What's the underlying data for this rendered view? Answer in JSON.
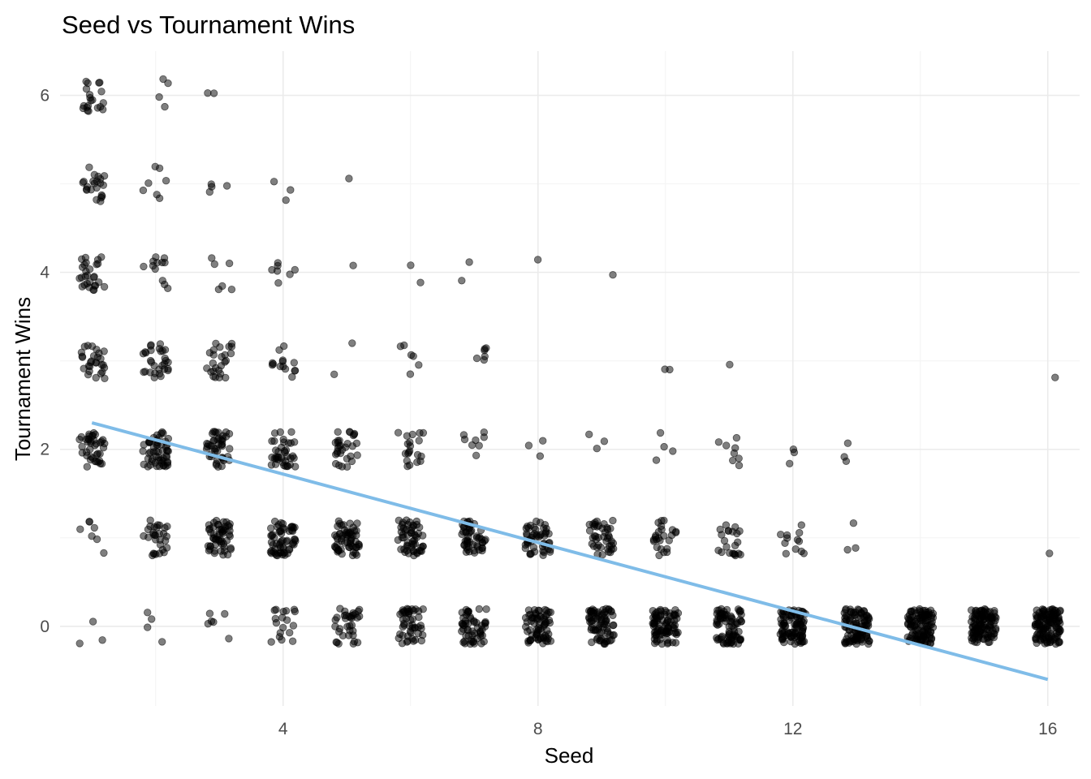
{
  "chart_data": {
    "type": "scatter",
    "title": "Seed vs Tournament Wins",
    "xlabel": "Seed",
    "ylabel": "Tournament Wins",
    "xlim": [
      0.5,
      16.5
    ],
    "ylim": [
      -0.9,
      6.5
    ],
    "x_ticks": [
      4,
      8,
      12,
      16
    ],
    "x_tick_labels": [
      "4",
      "8",
      "12",
      "16"
    ],
    "x_minor_gridlines": [
      2,
      6,
      10,
      14
    ],
    "y_ticks": [
      0,
      2,
      4,
      6
    ],
    "y_tick_labels": [
      "0",
      "2",
      "4",
      "6"
    ],
    "y_minor_gridlines": [
      1,
      3,
      5
    ],
    "grid": true,
    "legend": "none",
    "jitter": {
      "x": 0.2,
      "y": 0.2
    },
    "point_color": "#000000",
    "point_alpha": 0.5,
    "counts_by_seed": [
      {
        "seed": 1,
        "counts": [
          3,
          7,
          40,
          28,
          28,
          22,
          20
        ]
      },
      {
        "seed": 2,
        "counts": [
          4,
          30,
          55,
          30,
          12,
          7,
          4
        ]
      },
      {
        "seed": 3,
        "counts": [
          6,
          55,
          45,
          25,
          6,
          4,
          2
        ]
      },
      {
        "seed": 4,
        "counts": [
          18,
          60,
          38,
          14,
          7,
          3,
          0
        ]
      },
      {
        "seed": 5,
        "counts": [
          35,
          60,
          30,
          2,
          1,
          1,
          0
        ]
      },
      {
        "seed": 6,
        "counts": [
          48,
          55,
          20,
          6,
          2,
          0,
          0
        ]
      },
      {
        "seed": 7,
        "counts": [
          55,
          52,
          8,
          6,
          2,
          0,
          0
        ]
      },
      {
        "seed": 8,
        "counts": [
          70,
          50,
          3,
          0,
          1,
          0,
          0
        ]
      },
      {
        "seed": 9,
        "counts": [
          75,
          42,
          3,
          0,
          1,
          0,
          0
        ]
      },
      {
        "seed": 10,
        "counts": [
          85,
          25,
          4,
          2,
          0,
          0,
          0
        ]
      },
      {
        "seed": 11,
        "counts": [
          80,
          22,
          8,
          1,
          0,
          0,
          0
        ]
      },
      {
        "seed": 12,
        "counts": [
          95,
          12,
          3,
          0,
          0,
          0,
          0
        ]
      },
      {
        "seed": 13,
        "counts": [
          100,
          3,
          3,
          0,
          0,
          0,
          0
        ]
      },
      {
        "seed": 14,
        "counts": [
          110,
          0,
          0,
          0,
          0,
          0,
          0
        ]
      },
      {
        "seed": 15,
        "counts": [
          112,
          0,
          0,
          0,
          0,
          0,
          0
        ]
      },
      {
        "seed": 16,
        "counts": [
          125,
          1,
          0,
          1,
          0,
          0,
          0
        ]
      }
    ],
    "trend_line": {
      "x": [
        1,
        16
      ],
      "y": [
        2.3,
        -0.6
      ],
      "color": "#7fbce8"
    }
  }
}
